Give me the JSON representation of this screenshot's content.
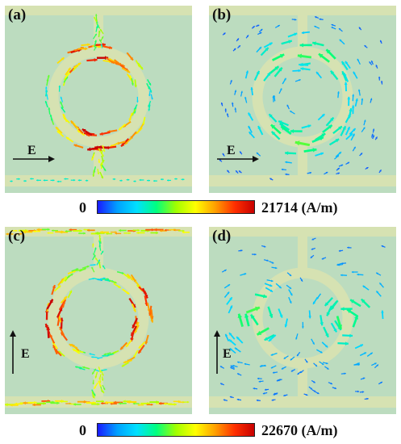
{
  "panels": [
    {
      "id": "a",
      "label": "(a)",
      "field_label": "E",
      "field_dir": "horizontal",
      "style": "ring-edges",
      "connectors": "vertical"
    },
    {
      "id": "b",
      "label": "(b)",
      "field_label": "E",
      "field_dir": "horizontal",
      "style": "swirl",
      "connectors": "vertical"
    },
    {
      "id": "c",
      "label": "(c)",
      "field_label": "E",
      "field_dir": "vertical",
      "style": "ring-edges",
      "connectors": "horizontal"
    },
    {
      "id": "d",
      "label": "(d)",
      "field_label": "E",
      "field_dir": "vertical",
      "style": "swirl",
      "connectors": "horizontal"
    }
  ],
  "colorbars": [
    {
      "min_label": "0",
      "max_label": "21714 (A/m)"
    },
    {
      "min_label": "0",
      "max_label": "22670 (A/m)"
    }
  ],
  "colors": {
    "background": "#bcdcbf",
    "structure": "#d6e2b2",
    "gradient": [
      "#1a1aff",
      "#00a0ff",
      "#00e0ff",
      "#00ff80",
      "#a0ff00",
      "#ffff00",
      "#ffa000",
      "#ff3000",
      "#c80000"
    ]
  }
}
